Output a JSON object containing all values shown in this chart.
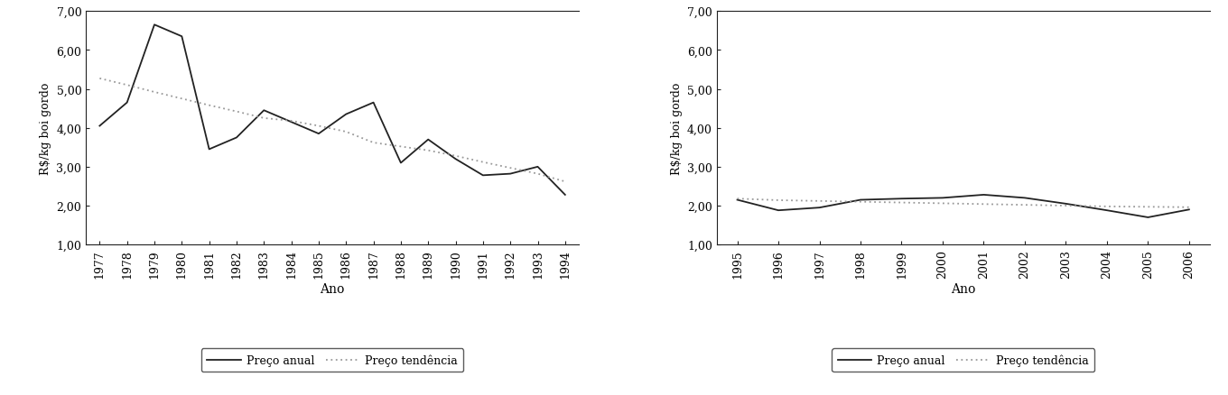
{
  "left": {
    "years": [
      1977,
      1978,
      1979,
      1980,
      1981,
      1982,
      1983,
      1984,
      1985,
      1986,
      1987,
      1988,
      1989,
      1990,
      1991,
      1992,
      1993,
      1994
    ],
    "preco_anual": [
      4.05,
      4.65,
      6.65,
      6.35,
      3.45,
      3.75,
      4.45,
      4.15,
      3.85,
      4.35,
      4.65,
      3.1,
      3.7,
      3.2,
      2.78,
      2.82,
      3.0,
      2.28
    ],
    "preco_tendencia": [
      5.27,
      5.1,
      4.92,
      4.75,
      4.58,
      4.42,
      4.25,
      4.18,
      4.05,
      3.9,
      3.62,
      3.52,
      3.42,
      3.28,
      3.12,
      2.97,
      2.82,
      2.62
    ],
    "ylabel": "R$/kg boi gordo",
    "xlabel": "Ano",
    "ylim": [
      1.0,
      7.0
    ],
    "yticks": [
      1.0,
      2.0,
      3.0,
      4.0,
      5.0,
      6.0,
      7.0
    ],
    "ytick_labels": [
      "1,00",
      "2,00",
      "3,00",
      "4,00",
      "5,00",
      "6,00",
      "7,00"
    ],
    "legend_labels": [
      "Preço anual",
      "Preço tendência"
    ]
  },
  "right": {
    "years": [
      1995,
      1996,
      1997,
      1998,
      1999,
      2000,
      2001,
      2002,
      2003,
      2004,
      2005,
      2006
    ],
    "preco_anual": [
      2.15,
      1.88,
      1.95,
      2.15,
      2.18,
      2.2,
      2.28,
      2.2,
      2.05,
      1.88,
      1.7,
      1.9
    ],
    "preco_tendencia": [
      2.18,
      2.14,
      2.12,
      2.1,
      2.08,
      2.06,
      2.04,
      2.02,
      2.0,
      1.98,
      1.97,
      1.96
    ],
    "ylabel": "R$/kg boi gordo",
    "xlabel": "Ano",
    "ylim": [
      1.0,
      7.0
    ],
    "yticks": [
      1.0,
      2.0,
      3.0,
      4.0,
      5.0,
      6.0,
      7.0
    ],
    "ytick_labels": [
      "1,00",
      "2,00",
      "3,00",
      "4,00",
      "5,00",
      "6,00",
      "7,00"
    ],
    "legend_labels": [
      "Preço anual",
      "Preço tendência"
    ]
  },
  "line_color": "#222222",
  "trend_color": "#999999",
  "background_color": "#ffffff",
  "figsize": [
    13.6,
    4.39
  ],
  "dpi": 100
}
